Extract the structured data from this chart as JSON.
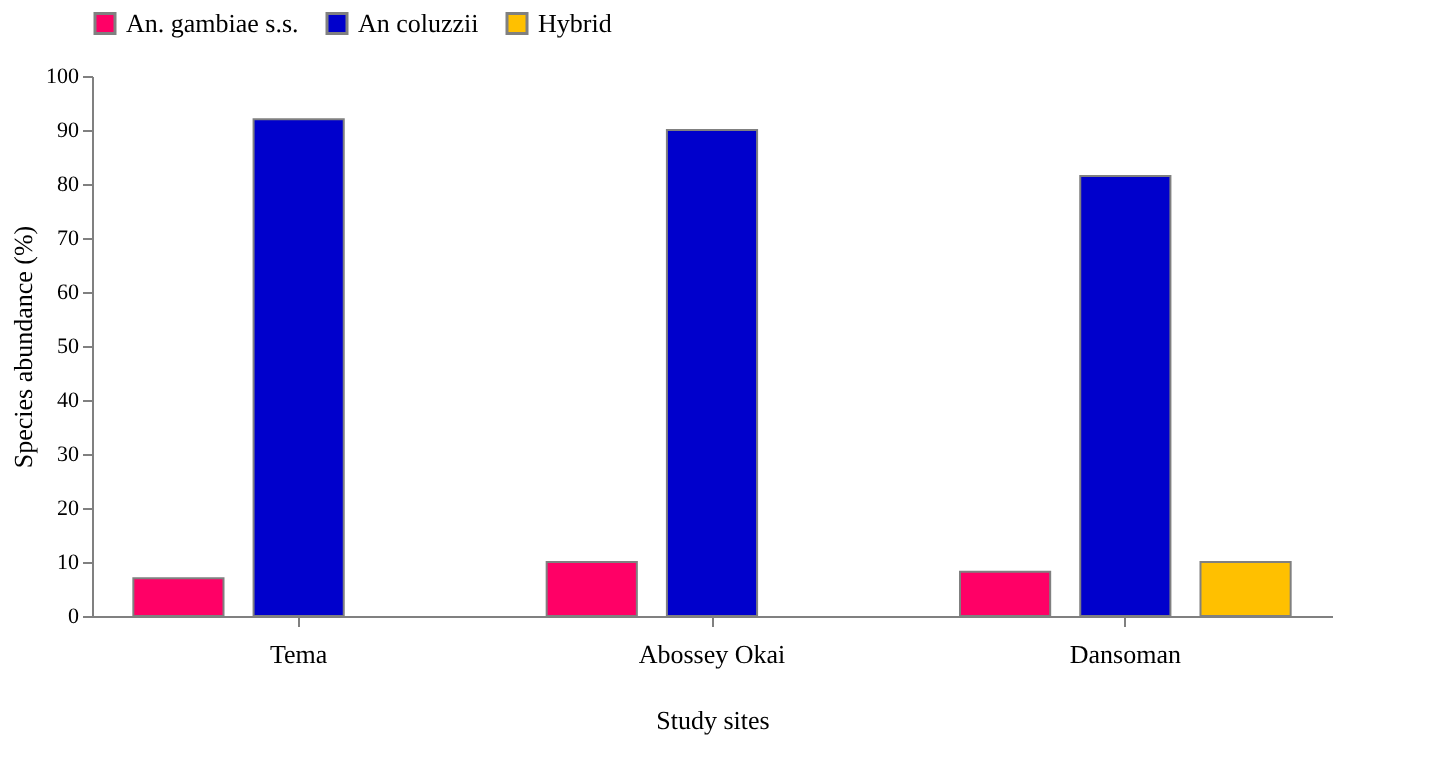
{
  "chart_data": {
    "type": "bar",
    "xlabel": "Study sites",
    "ylabel": "Species abundance (%)",
    "categories": [
      "Tema",
      "Abossey Okai",
      "Dansoman"
    ],
    "series": [
      {
        "name": "An. gambiae s.s.",
        "color": "#ff0066",
        "values": [
          7,
          10,
          8.2
        ]
      },
      {
        "name": "An coluzzii",
        "color": "#0000cc",
        "values": [
          92,
          90,
          81.5
        ]
      },
      {
        "name": "Hybrid",
        "color": "#ffc000",
        "values": [
          null,
          null,
          10
        ]
      }
    ],
    "ylim": [
      0,
      100
    ],
    "yticks": [
      0,
      10,
      20,
      30,
      40,
      50,
      60,
      70,
      80,
      90,
      100
    ],
    "grid": false,
    "legend": "top"
  }
}
